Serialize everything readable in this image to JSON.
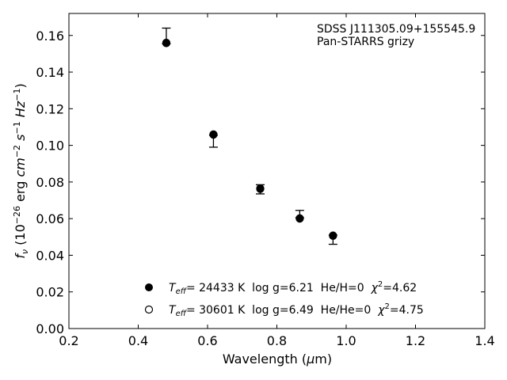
{
  "chart_data": {
    "type": "scatter",
    "xlabel_prefix": "Wavelength (",
    "xlabel_unit_symbol": "μ",
    "xlabel_unit_rest": "m)",
    "ylabel_symbol": "f",
    "ylabel_sub": "ν",
    "ylabel_text1": " (10",
    "ylabel_exp1": "−26",
    "ylabel_text2": " erg ",
    "ylabel_cm": "cm",
    "ylabel_exp2": "−2",
    "ylabel_s": "s",
    "ylabel_exp3": "−1",
    "ylabel_hz": "Hz",
    "ylabel_exp4": "−1",
    "ylabel_close": ")",
    "xlim": [
      0.2,
      1.4
    ],
    "ylim": [
      0.0,
      0.172
    ],
    "xticks": [
      "0.2",
      "0.4",
      "0.6",
      "0.8",
      "1.0",
      "1.2",
      "1.4"
    ],
    "yticks": [
      "0.00",
      "0.02",
      "0.04",
      "0.06",
      "0.08",
      "0.10",
      "0.12",
      "0.14",
      "0.16"
    ],
    "annotations": [
      "SDSS J111305.09+155545.9",
      "Pan-STARRS grizy"
    ],
    "observed": {
      "x": [
        0.481,
        0.617,
        0.752,
        0.866,
        0.962
      ],
      "y": [
        0.1555,
        0.1055,
        0.076,
        0.0605,
        0.05
      ],
      "yerr_upper": [
        0.0085,
        0.0,
        0.0025,
        0.004,
        0.001
      ],
      "yerr_lower": [
        0.0,
        0.0065,
        0.0025,
        0.0,
        0.004
      ]
    },
    "series": [
      {
        "marker": "filled-circle",
        "x": [
          0.481,
          0.617,
          0.752,
          0.866,
          0.962
        ],
        "y": [
          0.156,
          0.106,
          0.0765,
          0.06,
          0.0508
        ],
        "legend": {
          "teff_sym": "T",
          "teff_sub": "eff",
          "text1": "= 24433 K  log g=6.21  He/H=0  ",
          "chi_sym": "χ",
          "chi_sup": "2",
          "text2": "=4.62"
        }
      },
      {
        "marker": "open-circle",
        "x": [
          0.481,
          0.617,
          0.752,
          0.866,
          0.962
        ],
        "y": [
          0.1558,
          0.1058,
          0.0762,
          0.0602,
          0.0506
        ],
        "legend": {
          "teff_sym": "T",
          "teff_sub": "eff",
          "text1": "= 30601 K  log g=6.49  He/He=0  ",
          "chi_sym": "χ",
          "chi_sup": "2",
          "text2": "=4.75"
        }
      }
    ],
    "legend_position": "lower-center",
    "grid": false
  }
}
